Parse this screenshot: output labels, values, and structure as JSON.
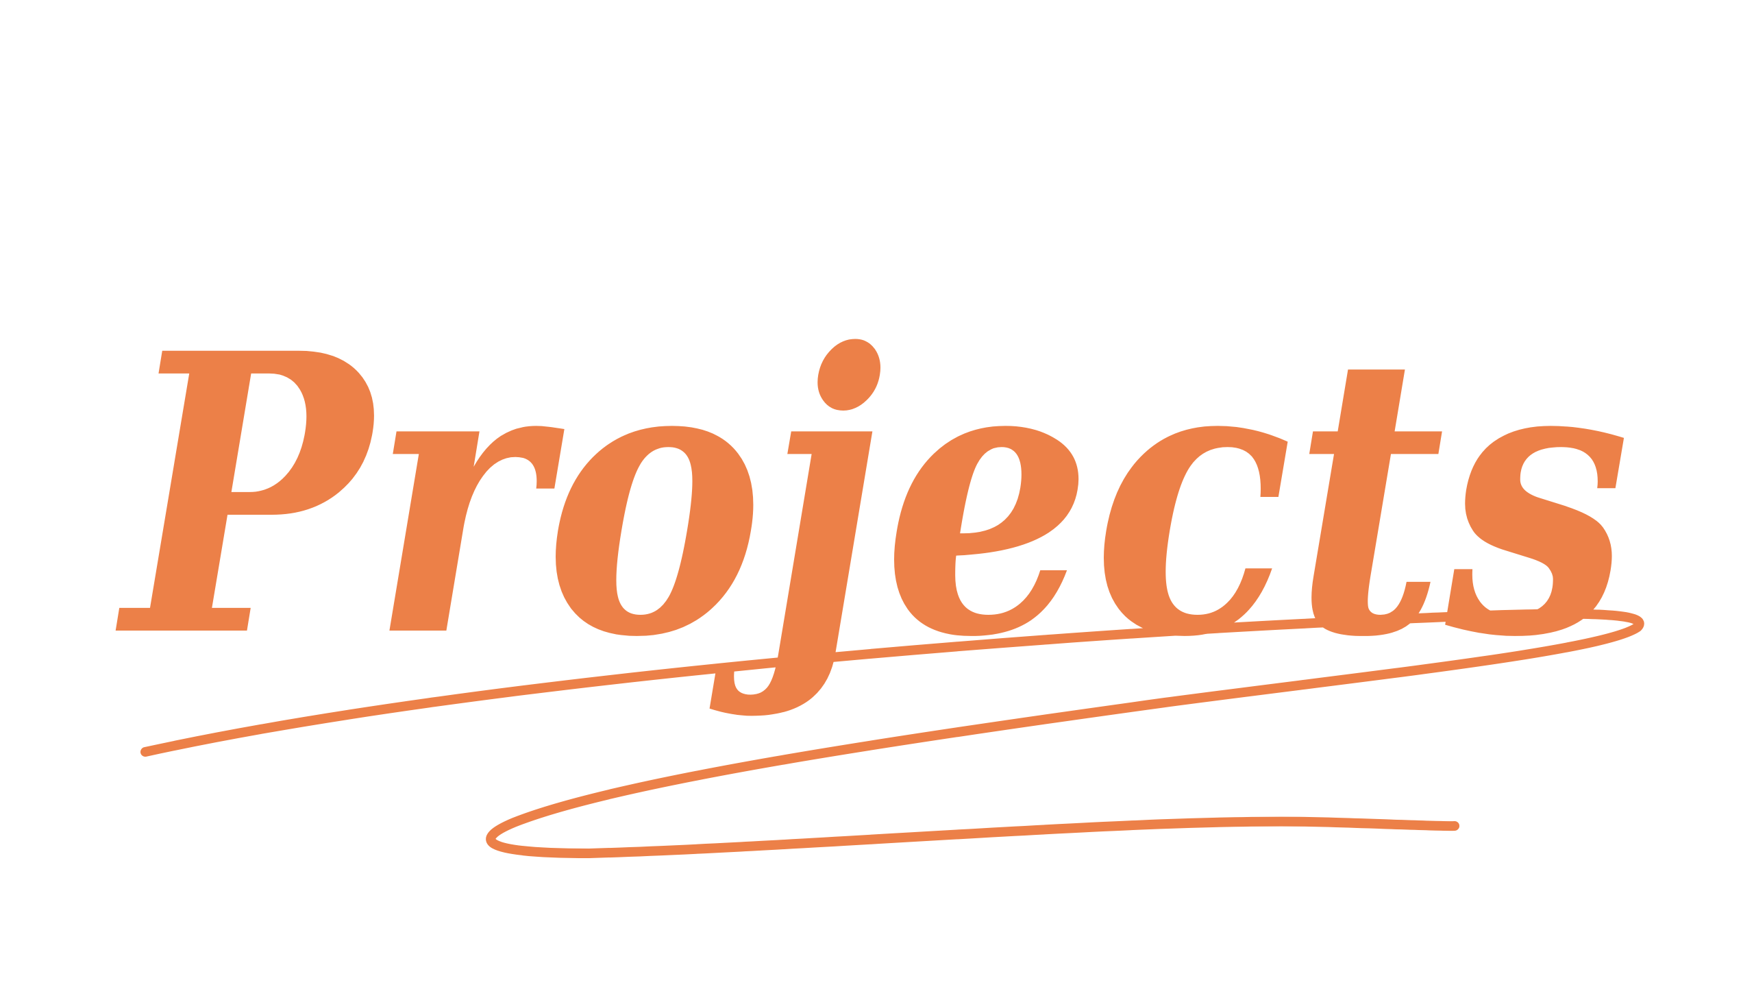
{
  "title": "Projects"
}
